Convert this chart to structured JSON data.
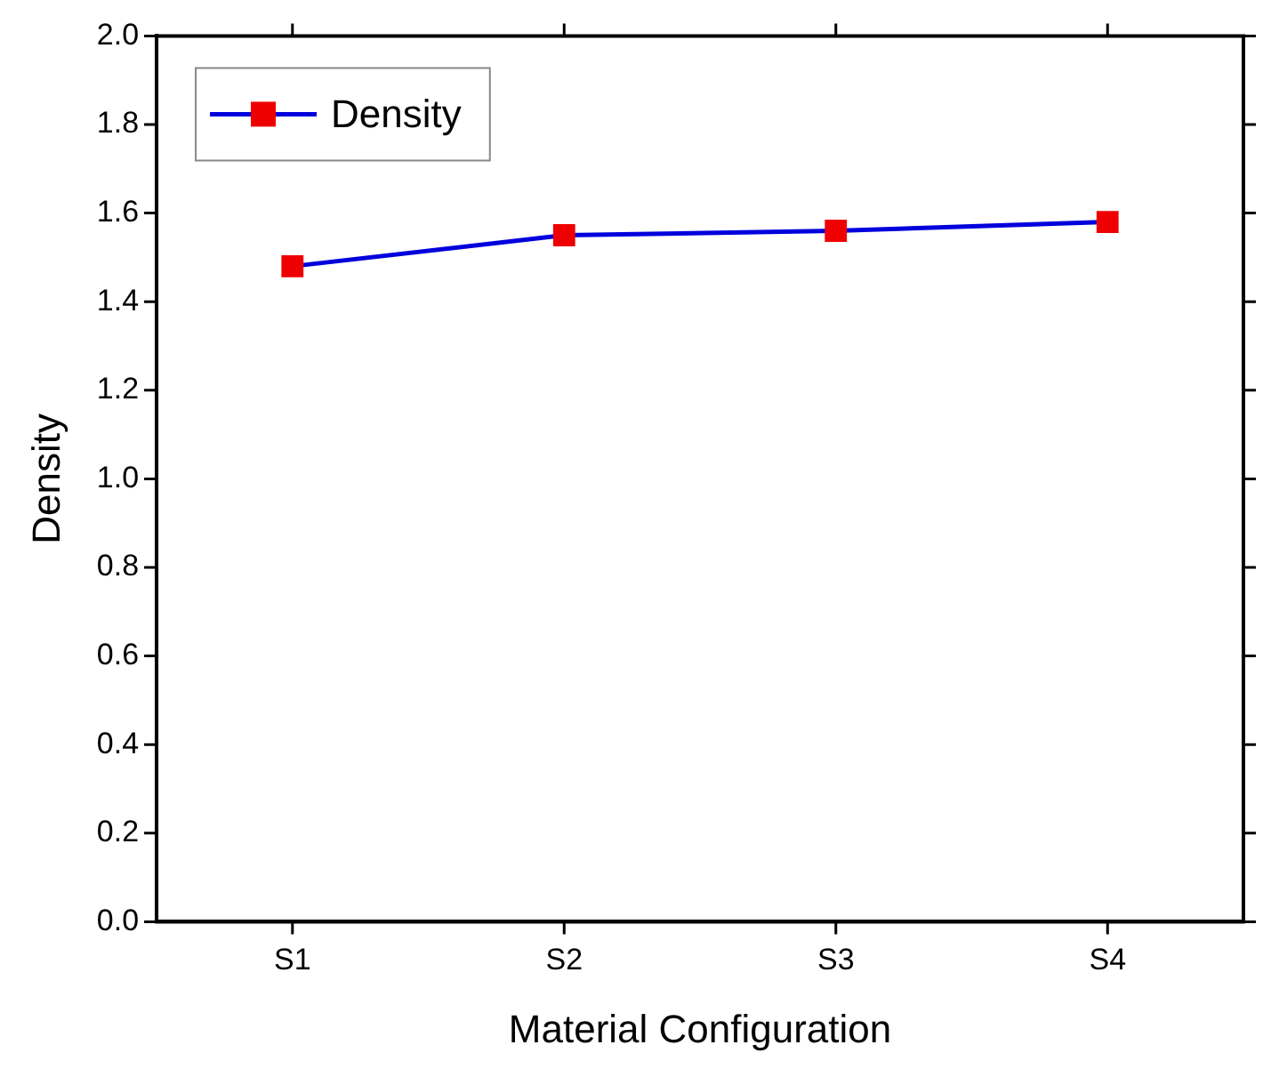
{
  "chart_data": {
    "type": "line",
    "xlabel": "Material Configuration",
    "ylabel": "Density",
    "categories": [
      "S1",
      "S2",
      "S3",
      "S4"
    ],
    "series": [
      {
        "name": "Density",
        "color": "#0000dd",
        "colors": [
          "#ee0000",
          "#ee0000",
          "#ee0000",
          "#ee0000"
        ],
        "values": [
          1.48,
          1.55,
          1.56,
          1.58
        ]
      }
    ],
    "ylim": [
      0,
      2
    ],
    "yticks": [
      {
        "value": 0,
        "label": "0.0"
      },
      {
        "value": 0.2,
        "label": "0.2"
      },
      {
        "value": 0.4,
        "label": "0.4"
      },
      {
        "value": 0.6,
        "label": "0.6"
      },
      {
        "value": 0.8,
        "label": "0.8"
      },
      {
        "value": 1,
        "label": "1.0"
      },
      {
        "value": 1.2,
        "label": "1.2"
      },
      {
        "value": 1.4,
        "label": "1.4"
      },
      {
        "value": 1.6,
        "label": "1.6"
      },
      {
        "value": 1.8,
        "label": "1.8"
      },
      {
        "value": 2,
        "label": "2.0"
      }
    ],
    "grid": false,
    "legend": "top left",
    "marker": "square",
    "line_style": "solid"
  }
}
